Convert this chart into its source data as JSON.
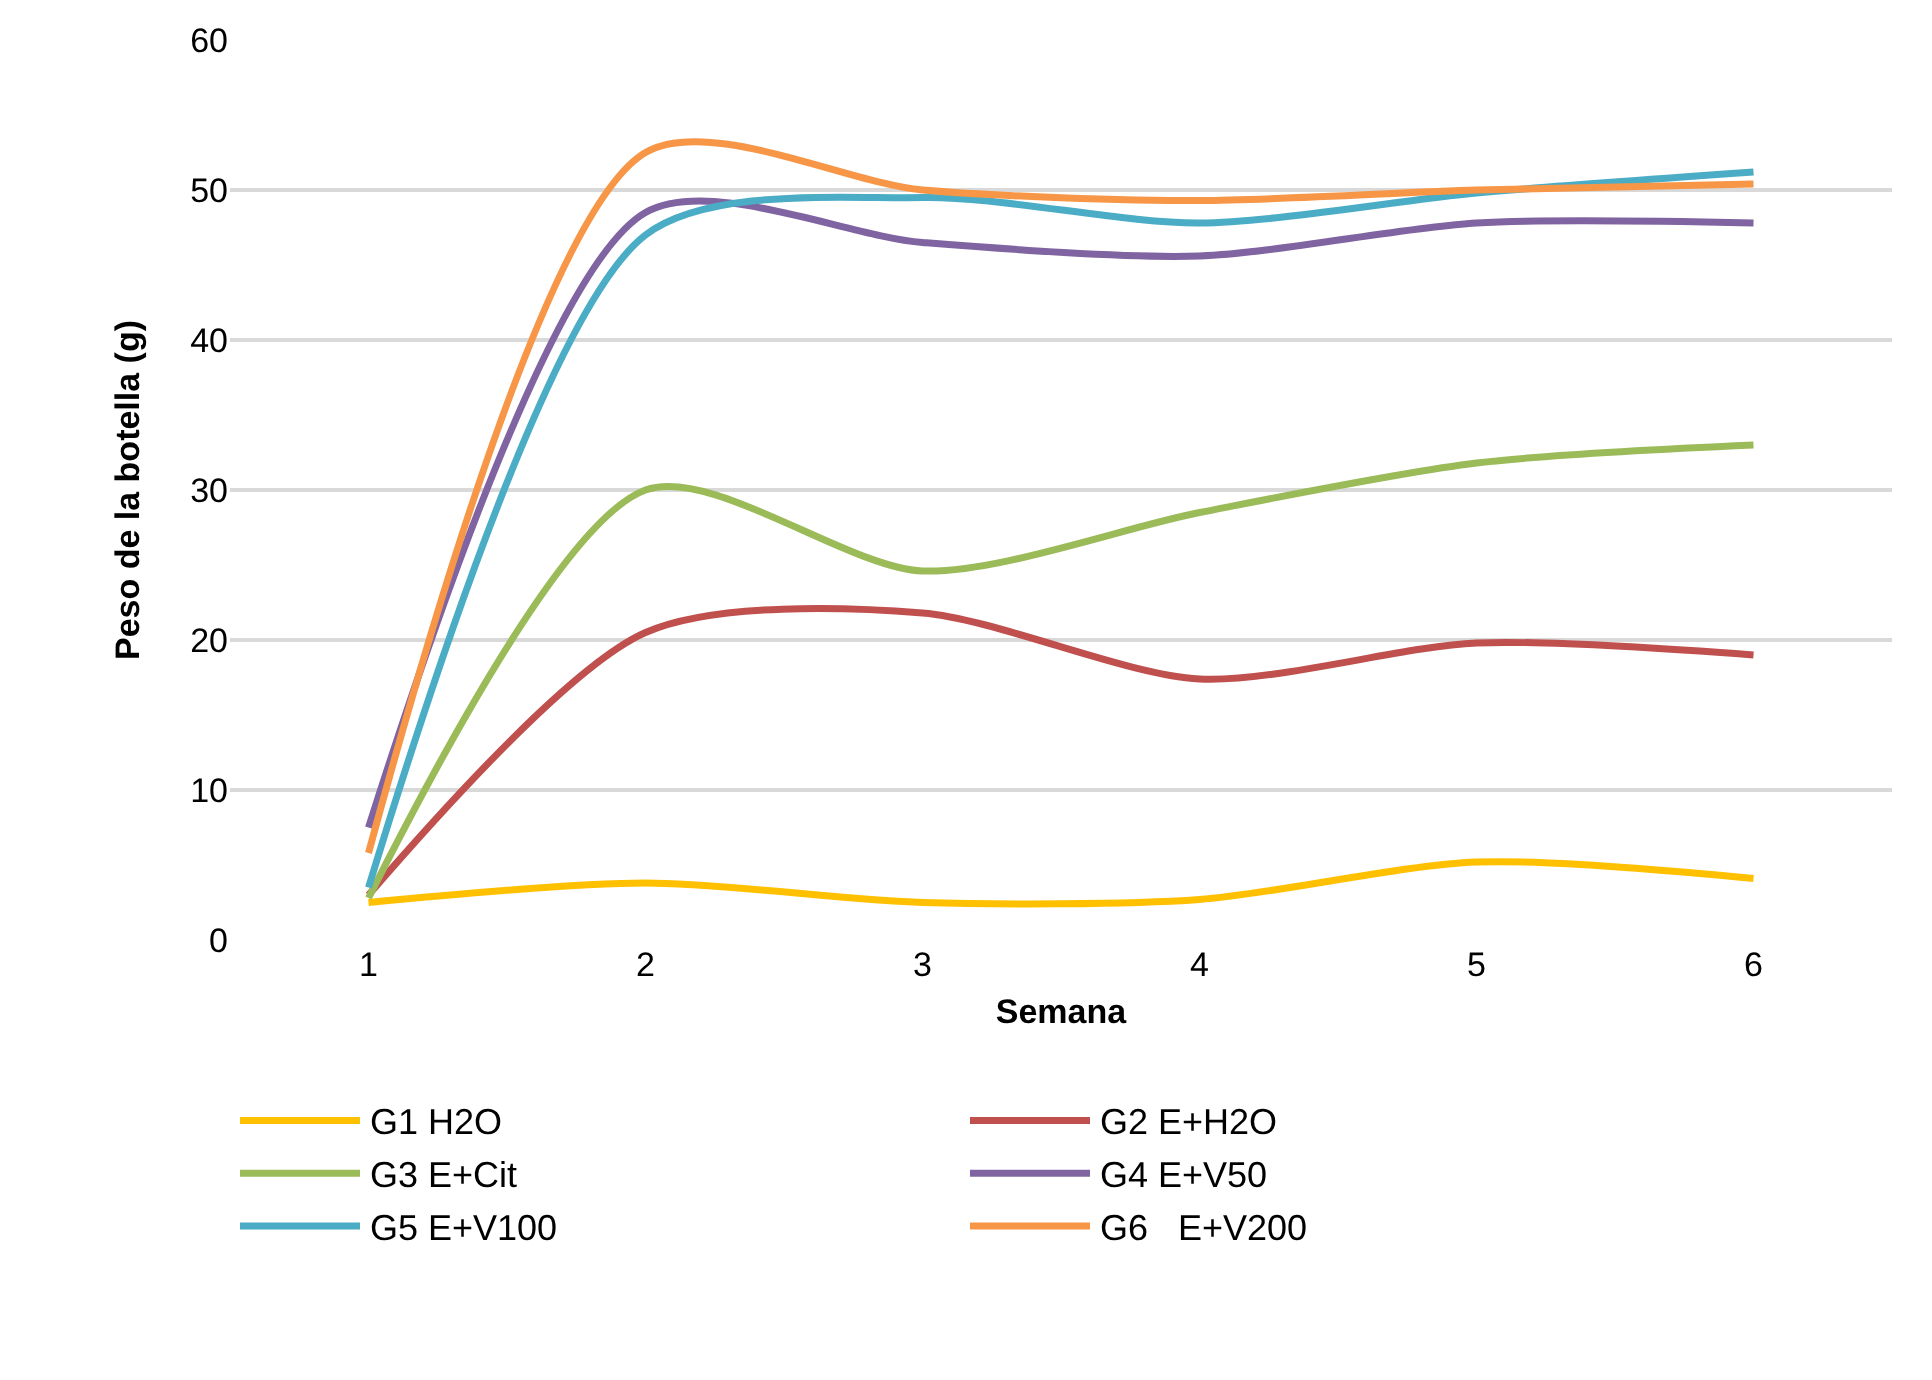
{
  "chart_data": {
    "type": "line",
    "xlabel": "Semana",
    "ylabel": "Peso de la botella (g)",
    "categories": [
      "1",
      "2",
      "3",
      "4",
      "5",
      "6"
    ],
    "series": [
      {
        "name": "G1 H2O",
        "color": "#ffc000",
        "values": [
          2.5,
          3.8,
          2.5,
          2.7,
          5.2,
          4.1
        ]
      },
      {
        "name": "G2 E+H2O",
        "color": "#c0504d",
        "values": [
          3,
          20.5,
          21.8,
          17.4,
          19.8,
          19
        ]
      },
      {
        "name": "G3 E+Cit",
        "color": "#9bbb59",
        "values": [
          2.8,
          30,
          24.6,
          28.5,
          31.8,
          33
        ]
      },
      {
        "name": "G4 E+V50",
        "color": "#8064a2",
        "values": [
          7.5,
          48.5,
          46.5,
          45.6,
          47.8,
          47.8
        ]
      },
      {
        "name": "G5 E+V100",
        "color": "#4bacc6",
        "values": [
          3.5,
          47,
          49.5,
          47.8,
          49.8,
          51.2
        ]
      },
      {
        "name": "G6   E+V200",
        "color": "#f79646",
        "values": [
          5.8,
          52.5,
          50,
          49.3,
          50,
          50.4
        ]
      }
    ],
    "ylim": [
      0,
      60
    ],
    "yticks": [
      0,
      10,
      20,
      30,
      40,
      50,
      60
    ],
    "grid": "y",
    "legend": "bottom",
    "marker": "none",
    "line_style": "solid"
  }
}
